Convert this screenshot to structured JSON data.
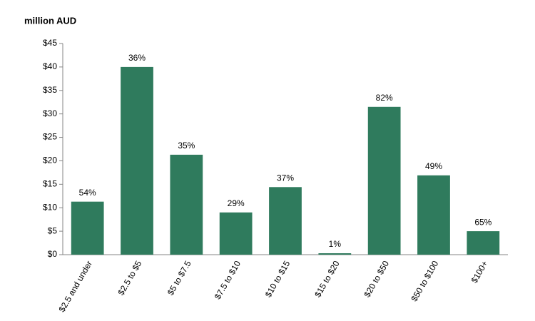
{
  "chart_data": {
    "type": "bar",
    "y_axis_label": "million AUD",
    "categories": [
      "$2.5 and under",
      "$2.5 to $5",
      "$5 to $7.5",
      "$7.5 to $10",
      "$10 to $15",
      "$15 to $20",
      "$20 to $50",
      "$50 to $100",
      "$100+"
    ],
    "values": [
      11.3,
      40,
      21.3,
      9,
      14.4,
      0.3,
      31.5,
      16.9,
      5
    ],
    "annotations": [
      "54%",
      "36%",
      "35%",
      "29%",
      "37%",
      "1%",
      "82%",
      "49%",
      "65%"
    ],
    "color": "#2f7b5d",
    "ylim": [
      0,
      45
    ],
    "yticks": [
      {
        "value": 0,
        "label": "$0"
      },
      {
        "value": 5,
        "label": "$5"
      },
      {
        "value": 10,
        "label": "$10"
      },
      {
        "value": 15,
        "label": "$15"
      },
      {
        "value": 20,
        "label": "$20"
      },
      {
        "value": 25,
        "label": "$25"
      },
      {
        "value": 30,
        "label": "$30"
      },
      {
        "value": 35,
        "label": "$35"
      },
      {
        "value": 40,
        "label": "$40"
      },
      {
        "value": 45,
        "label": "$45"
      }
    ],
    "grid": false
  }
}
